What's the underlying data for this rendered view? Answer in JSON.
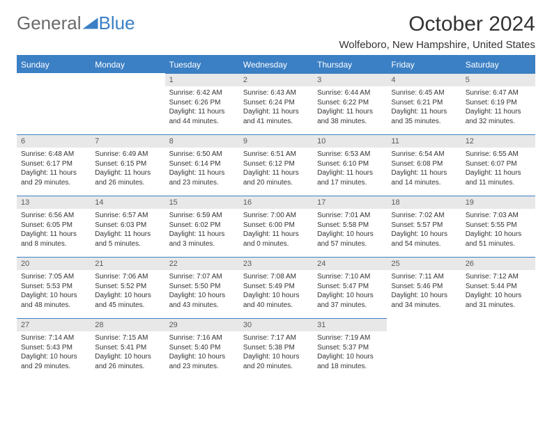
{
  "brand": {
    "part1": "General",
    "part2": "Blue"
  },
  "title": "October 2024",
  "location": "Wolfeboro, New Hampshire, United States",
  "colors": {
    "accent": "#3b7fc4",
    "header_bg": "#3b7fc4",
    "daynum_bg": "#e8e8e8"
  },
  "weekdays": [
    "Sunday",
    "Monday",
    "Tuesday",
    "Wednesday",
    "Thursday",
    "Friday",
    "Saturday"
  ],
  "weeks": [
    [
      null,
      null,
      {
        "n": "1",
        "sr": "Sunrise: 6:42 AM",
        "ss": "Sunset: 6:26 PM",
        "dl": "Daylight: 11 hours and 44 minutes."
      },
      {
        "n": "2",
        "sr": "Sunrise: 6:43 AM",
        "ss": "Sunset: 6:24 PM",
        "dl": "Daylight: 11 hours and 41 minutes."
      },
      {
        "n": "3",
        "sr": "Sunrise: 6:44 AM",
        "ss": "Sunset: 6:22 PM",
        "dl": "Daylight: 11 hours and 38 minutes."
      },
      {
        "n": "4",
        "sr": "Sunrise: 6:45 AM",
        "ss": "Sunset: 6:21 PM",
        "dl": "Daylight: 11 hours and 35 minutes."
      },
      {
        "n": "5",
        "sr": "Sunrise: 6:47 AM",
        "ss": "Sunset: 6:19 PM",
        "dl": "Daylight: 11 hours and 32 minutes."
      }
    ],
    [
      {
        "n": "6",
        "sr": "Sunrise: 6:48 AM",
        "ss": "Sunset: 6:17 PM",
        "dl": "Daylight: 11 hours and 29 minutes."
      },
      {
        "n": "7",
        "sr": "Sunrise: 6:49 AM",
        "ss": "Sunset: 6:15 PM",
        "dl": "Daylight: 11 hours and 26 minutes."
      },
      {
        "n": "8",
        "sr": "Sunrise: 6:50 AM",
        "ss": "Sunset: 6:14 PM",
        "dl": "Daylight: 11 hours and 23 minutes."
      },
      {
        "n": "9",
        "sr": "Sunrise: 6:51 AM",
        "ss": "Sunset: 6:12 PM",
        "dl": "Daylight: 11 hours and 20 minutes."
      },
      {
        "n": "10",
        "sr": "Sunrise: 6:53 AM",
        "ss": "Sunset: 6:10 PM",
        "dl": "Daylight: 11 hours and 17 minutes."
      },
      {
        "n": "11",
        "sr": "Sunrise: 6:54 AM",
        "ss": "Sunset: 6:08 PM",
        "dl": "Daylight: 11 hours and 14 minutes."
      },
      {
        "n": "12",
        "sr": "Sunrise: 6:55 AM",
        "ss": "Sunset: 6:07 PM",
        "dl": "Daylight: 11 hours and 11 minutes."
      }
    ],
    [
      {
        "n": "13",
        "sr": "Sunrise: 6:56 AM",
        "ss": "Sunset: 6:05 PM",
        "dl": "Daylight: 11 hours and 8 minutes."
      },
      {
        "n": "14",
        "sr": "Sunrise: 6:57 AM",
        "ss": "Sunset: 6:03 PM",
        "dl": "Daylight: 11 hours and 5 minutes."
      },
      {
        "n": "15",
        "sr": "Sunrise: 6:59 AM",
        "ss": "Sunset: 6:02 PM",
        "dl": "Daylight: 11 hours and 3 minutes."
      },
      {
        "n": "16",
        "sr": "Sunrise: 7:00 AM",
        "ss": "Sunset: 6:00 PM",
        "dl": "Daylight: 11 hours and 0 minutes."
      },
      {
        "n": "17",
        "sr": "Sunrise: 7:01 AM",
        "ss": "Sunset: 5:58 PM",
        "dl": "Daylight: 10 hours and 57 minutes."
      },
      {
        "n": "18",
        "sr": "Sunrise: 7:02 AM",
        "ss": "Sunset: 5:57 PM",
        "dl": "Daylight: 10 hours and 54 minutes."
      },
      {
        "n": "19",
        "sr": "Sunrise: 7:03 AM",
        "ss": "Sunset: 5:55 PM",
        "dl": "Daylight: 10 hours and 51 minutes."
      }
    ],
    [
      {
        "n": "20",
        "sr": "Sunrise: 7:05 AM",
        "ss": "Sunset: 5:53 PM",
        "dl": "Daylight: 10 hours and 48 minutes."
      },
      {
        "n": "21",
        "sr": "Sunrise: 7:06 AM",
        "ss": "Sunset: 5:52 PM",
        "dl": "Daylight: 10 hours and 45 minutes."
      },
      {
        "n": "22",
        "sr": "Sunrise: 7:07 AM",
        "ss": "Sunset: 5:50 PM",
        "dl": "Daylight: 10 hours and 43 minutes."
      },
      {
        "n": "23",
        "sr": "Sunrise: 7:08 AM",
        "ss": "Sunset: 5:49 PM",
        "dl": "Daylight: 10 hours and 40 minutes."
      },
      {
        "n": "24",
        "sr": "Sunrise: 7:10 AM",
        "ss": "Sunset: 5:47 PM",
        "dl": "Daylight: 10 hours and 37 minutes."
      },
      {
        "n": "25",
        "sr": "Sunrise: 7:11 AM",
        "ss": "Sunset: 5:46 PM",
        "dl": "Daylight: 10 hours and 34 minutes."
      },
      {
        "n": "26",
        "sr": "Sunrise: 7:12 AM",
        "ss": "Sunset: 5:44 PM",
        "dl": "Daylight: 10 hours and 31 minutes."
      }
    ],
    [
      {
        "n": "27",
        "sr": "Sunrise: 7:14 AM",
        "ss": "Sunset: 5:43 PM",
        "dl": "Daylight: 10 hours and 29 minutes."
      },
      {
        "n": "28",
        "sr": "Sunrise: 7:15 AM",
        "ss": "Sunset: 5:41 PM",
        "dl": "Daylight: 10 hours and 26 minutes."
      },
      {
        "n": "29",
        "sr": "Sunrise: 7:16 AM",
        "ss": "Sunset: 5:40 PM",
        "dl": "Daylight: 10 hours and 23 minutes."
      },
      {
        "n": "30",
        "sr": "Sunrise: 7:17 AM",
        "ss": "Sunset: 5:38 PM",
        "dl": "Daylight: 10 hours and 20 minutes."
      },
      {
        "n": "31",
        "sr": "Sunrise: 7:19 AM",
        "ss": "Sunset: 5:37 PM",
        "dl": "Daylight: 10 hours and 18 minutes."
      },
      null,
      null
    ]
  ]
}
